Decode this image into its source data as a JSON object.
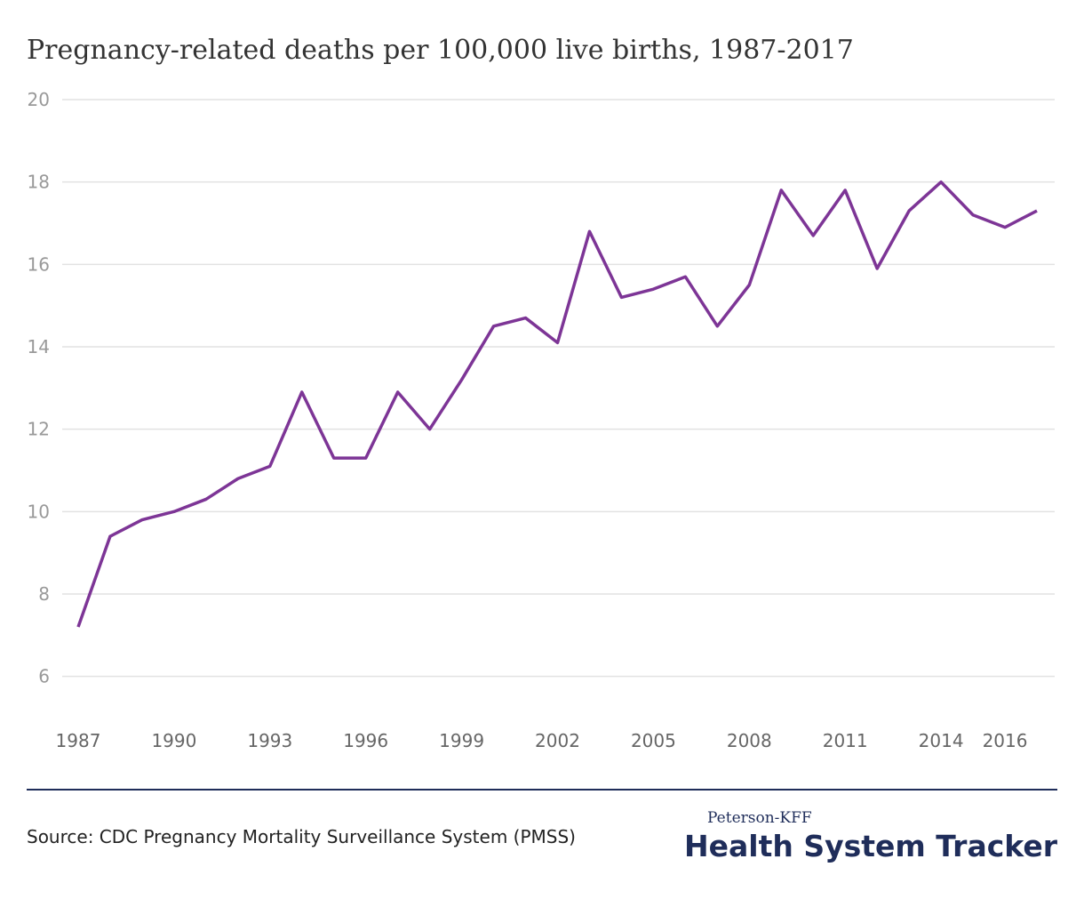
{
  "chart_data": {
    "type": "line",
    "title": "Pregnancy-related deaths per 100,000 live births, 1987-2017",
    "x": [
      1987,
      1988,
      1989,
      1990,
      1991,
      1992,
      1993,
      1994,
      1995,
      1996,
      1997,
      1998,
      1999,
      2000,
      2001,
      2002,
      2003,
      2004,
      2005,
      2006,
      2007,
      2008,
      2009,
      2010,
      2011,
      2012,
      2013,
      2014,
      2015,
      2016,
      2017
    ],
    "series": [
      {
        "color": "#7d3596",
        "values": [
          7.2,
          9.4,
          9.8,
          10.0,
          10.3,
          10.8,
          11.1,
          12.9,
          11.3,
          11.3,
          12.9,
          12.0,
          13.2,
          14.5,
          14.7,
          14.1,
          16.8,
          15.2,
          15.4,
          15.7,
          14.5,
          15.5,
          17.8,
          16.7,
          17.8,
          15.9,
          17.3,
          18.0,
          17.2,
          16.9,
          17.3
        ]
      }
    ],
    "xlim": [
      1987,
      2017
    ],
    "xticks": [
      1987,
      1990,
      1993,
      1996,
      1999,
      2002,
      2005,
      2008,
      2011,
      2014,
      2016
    ],
    "ylim": [
      5,
      20
    ],
    "yticks": [
      6,
      8,
      10,
      12,
      14,
      16,
      18,
      20
    ],
    "grid": true,
    "source": "Source: CDC Pregnancy Mortality Surveillance System (PMSS)"
  },
  "footer": {
    "brand_top": "Peterson-KFF",
    "brand_main": "Health System Tracker"
  }
}
